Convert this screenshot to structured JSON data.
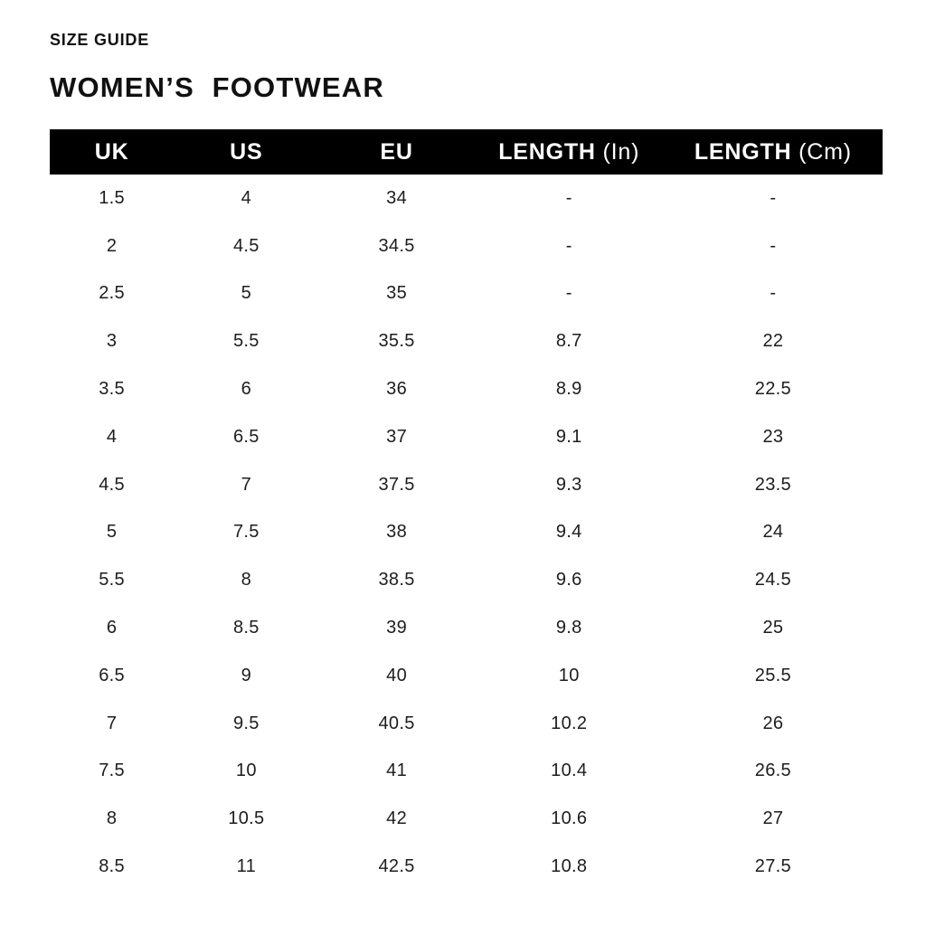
{
  "page": {
    "eyebrow": "SIZE GUIDE",
    "title": "WOMEN’S  FOOTWEAR"
  },
  "table": {
    "columns": [
      {
        "label": "UK",
        "suffix": ""
      },
      {
        "label": "US",
        "suffix": ""
      },
      {
        "label": "EU",
        "suffix": ""
      },
      {
        "label": "LENGTH",
        "suffix": " (In)"
      },
      {
        "label": "LENGTH",
        "suffix": " (Cm)"
      }
    ],
    "rows": [
      [
        "1.5",
        "4",
        "34",
        "-",
        "-"
      ],
      [
        "2",
        "4.5",
        "34.5",
        "-",
        "-"
      ],
      [
        "2.5",
        "5",
        "35",
        "-",
        "-"
      ],
      [
        "3",
        "5.5",
        "35.5",
        "8.7",
        "22"
      ],
      [
        "3.5",
        "6",
        "36",
        "8.9",
        "22.5"
      ],
      [
        "4",
        "6.5",
        "37",
        "9.1",
        "23"
      ],
      [
        "4.5",
        "7",
        "37.5",
        "9.3",
        "23.5"
      ],
      [
        "5",
        "7.5",
        "38",
        "9.4",
        "24"
      ],
      [
        "5.5",
        "8",
        "38.5",
        "9.6",
        "24.5"
      ],
      [
        "6",
        "8.5",
        "39",
        "9.8",
        "25"
      ],
      [
        "6.5",
        "9",
        "40",
        "10",
        "25.5"
      ],
      [
        "7",
        "9.5",
        "40.5",
        "10.2",
        "26"
      ],
      [
        "7.5",
        "10",
        "41",
        "10.4",
        "26.5"
      ],
      [
        "8",
        "10.5",
        "42",
        "10.6",
        "27"
      ],
      [
        "8.5",
        "11",
        "42.5",
        "10.8",
        "27.5"
      ]
    ]
  },
  "colors": {
    "header_bg": "#000000",
    "header_text": "#ffffff",
    "body_text": "#1d1d1d",
    "background": "#ffffff"
  }
}
